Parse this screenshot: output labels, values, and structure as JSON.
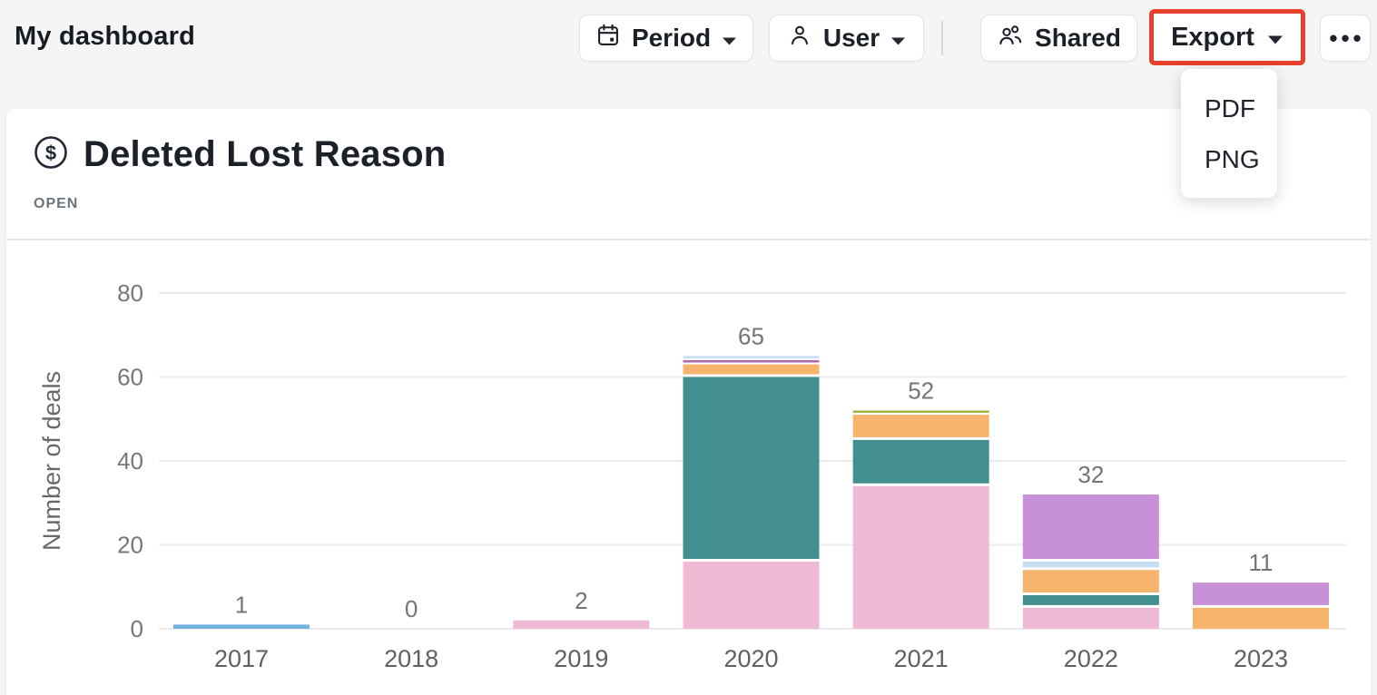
{
  "header": {
    "title": "My dashboard",
    "buttons": {
      "period": "Period",
      "user": "User",
      "shared": "Shared",
      "export": "Export",
      "more": "•••"
    },
    "export_highlight_color": "#e8402a",
    "export_menu": [
      "PDF",
      "PNG"
    ]
  },
  "card": {
    "title": "Deleted Lost Reason",
    "status": "OPEN"
  },
  "chart_data": {
    "type": "bar",
    "stacked": true,
    "title": "Deleted Lost Reason",
    "ylabel": "Number of deals",
    "xlabel": "",
    "yticks": [
      0,
      20,
      40,
      60,
      80
    ],
    "ylim": [
      0,
      84
    ],
    "grid": "horizontal",
    "legend": "none",
    "categories": [
      "2017",
      "2018",
      "2019",
      "2020",
      "2021",
      "2022",
      "2023"
    ],
    "totals": [
      1,
      0,
      2,
      65,
      52,
      32,
      11
    ],
    "series_colors": {
      "blue": "#74b2e2",
      "pink": "#eebad5",
      "teal": "#438e8e",
      "orange": "#f6b46c",
      "plum": "#b364af",
      "light_blue": "#c6def4",
      "olive": "#a7b240",
      "violet": "#c890d6"
    },
    "bars": [
      {
        "category": "2017",
        "total": 1,
        "segments": [
          {
            "series": "blue",
            "value": 1
          }
        ]
      },
      {
        "category": "2018",
        "total": 0,
        "segments": []
      },
      {
        "category": "2019",
        "total": 2,
        "segments": [
          {
            "series": "pink",
            "value": 2
          }
        ]
      },
      {
        "category": "2020",
        "total": 65,
        "segments": [
          {
            "series": "pink",
            "value": 16
          },
          {
            "series": "teal",
            "value": 44
          },
          {
            "series": "orange",
            "value": 3
          },
          {
            "series": "plum",
            "value": 1
          },
          {
            "series": "light_blue",
            "value": 1
          }
        ]
      },
      {
        "category": "2021",
        "total": 52,
        "segments": [
          {
            "series": "pink",
            "value": 34
          },
          {
            "series": "teal",
            "value": 11
          },
          {
            "series": "orange",
            "value": 6
          },
          {
            "series": "olive",
            "value": 1
          }
        ]
      },
      {
        "category": "2022",
        "total": 32,
        "segments": [
          {
            "series": "pink",
            "value": 5
          },
          {
            "series": "teal",
            "value": 3
          },
          {
            "series": "orange",
            "value": 6
          },
          {
            "series": "light_blue",
            "value": 2
          },
          {
            "series": "violet",
            "value": 16
          }
        ]
      },
      {
        "category": "2023",
        "total": 11,
        "segments": [
          {
            "series": "orange",
            "value": 5
          },
          {
            "series": "violet",
            "value": 6
          }
        ]
      }
    ]
  }
}
